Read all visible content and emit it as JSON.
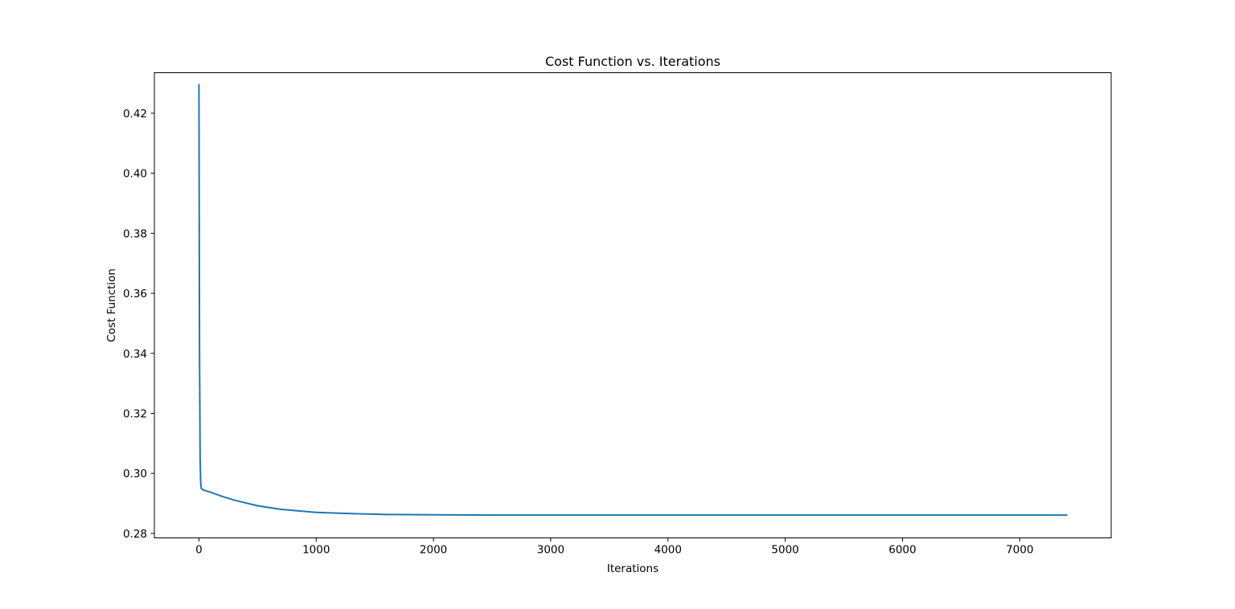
{
  "chart_data": {
    "type": "line",
    "title": "Cost Function vs. Iterations",
    "xlabel": "Iterations",
    "ylabel": "Cost Function",
    "xlim": [
      -380,
      7780
    ],
    "ylim": [
      0.2785,
      0.4335
    ],
    "xticks": [
      0,
      1000,
      2000,
      3000,
      4000,
      5000,
      6000,
      7000
    ],
    "xtick_labels": [
      "0",
      "1000",
      "2000",
      "3000",
      "4000",
      "5000",
      "6000",
      "7000"
    ],
    "yticks": [
      0.28,
      0.3,
      0.32,
      0.34,
      0.36,
      0.38,
      0.4,
      0.42
    ],
    "ytick_labels": [
      "0.28",
      "0.30",
      "0.32",
      "0.34",
      "0.36",
      "0.38",
      "0.40",
      "0.42"
    ],
    "grid": false,
    "legend": null,
    "series": [
      {
        "color": "#1f77b4",
        "x": [
          0,
          5,
          10,
          15,
          20,
          30,
          50,
          100,
          200,
          300,
          500,
          700,
          1000,
          1300,
          1600,
          2000,
          2500,
          3000,
          4000,
          5000,
          6000,
          7000,
          7400
        ],
        "y": [
          0.4295,
          0.34,
          0.305,
          0.297,
          0.295,
          0.2946,
          0.2943,
          0.2937,
          0.2923,
          0.2911,
          0.2892,
          0.288,
          0.287,
          0.2866,
          0.2863,
          0.2862,
          0.2861,
          0.2861,
          0.2861,
          0.2861,
          0.2861,
          0.2861,
          0.2861
        ]
      }
    ]
  }
}
